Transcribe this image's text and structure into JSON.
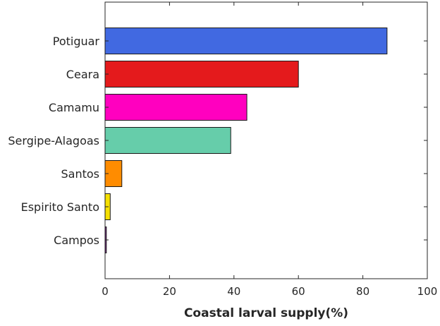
{
  "chart_data": {
    "type": "bar",
    "orientation": "horizontal",
    "categories": [
      "Potiguar",
      "Ceara",
      "Camamu",
      "Sergipe-Alagoas",
      "Santos",
      "Espirito Santo",
      "Campos"
    ],
    "values": [
      87.5,
      60,
      44,
      39,
      5.2,
      1.6,
      0.4
    ],
    "colors": [
      "#4169e1",
      "#e41a1c",
      "#ff00bf",
      "#66cdaa",
      "#ff8c00",
      "#f5e000",
      "#7b2d8b"
    ],
    "xlabel": "Coastal larval supply(%)",
    "ylabel": "",
    "title": "",
    "xlim": [
      0,
      100
    ],
    "xticks": [
      "0",
      "20",
      "40",
      "60",
      "80",
      "100"
    ],
    "grid": false,
    "legend": "none"
  }
}
